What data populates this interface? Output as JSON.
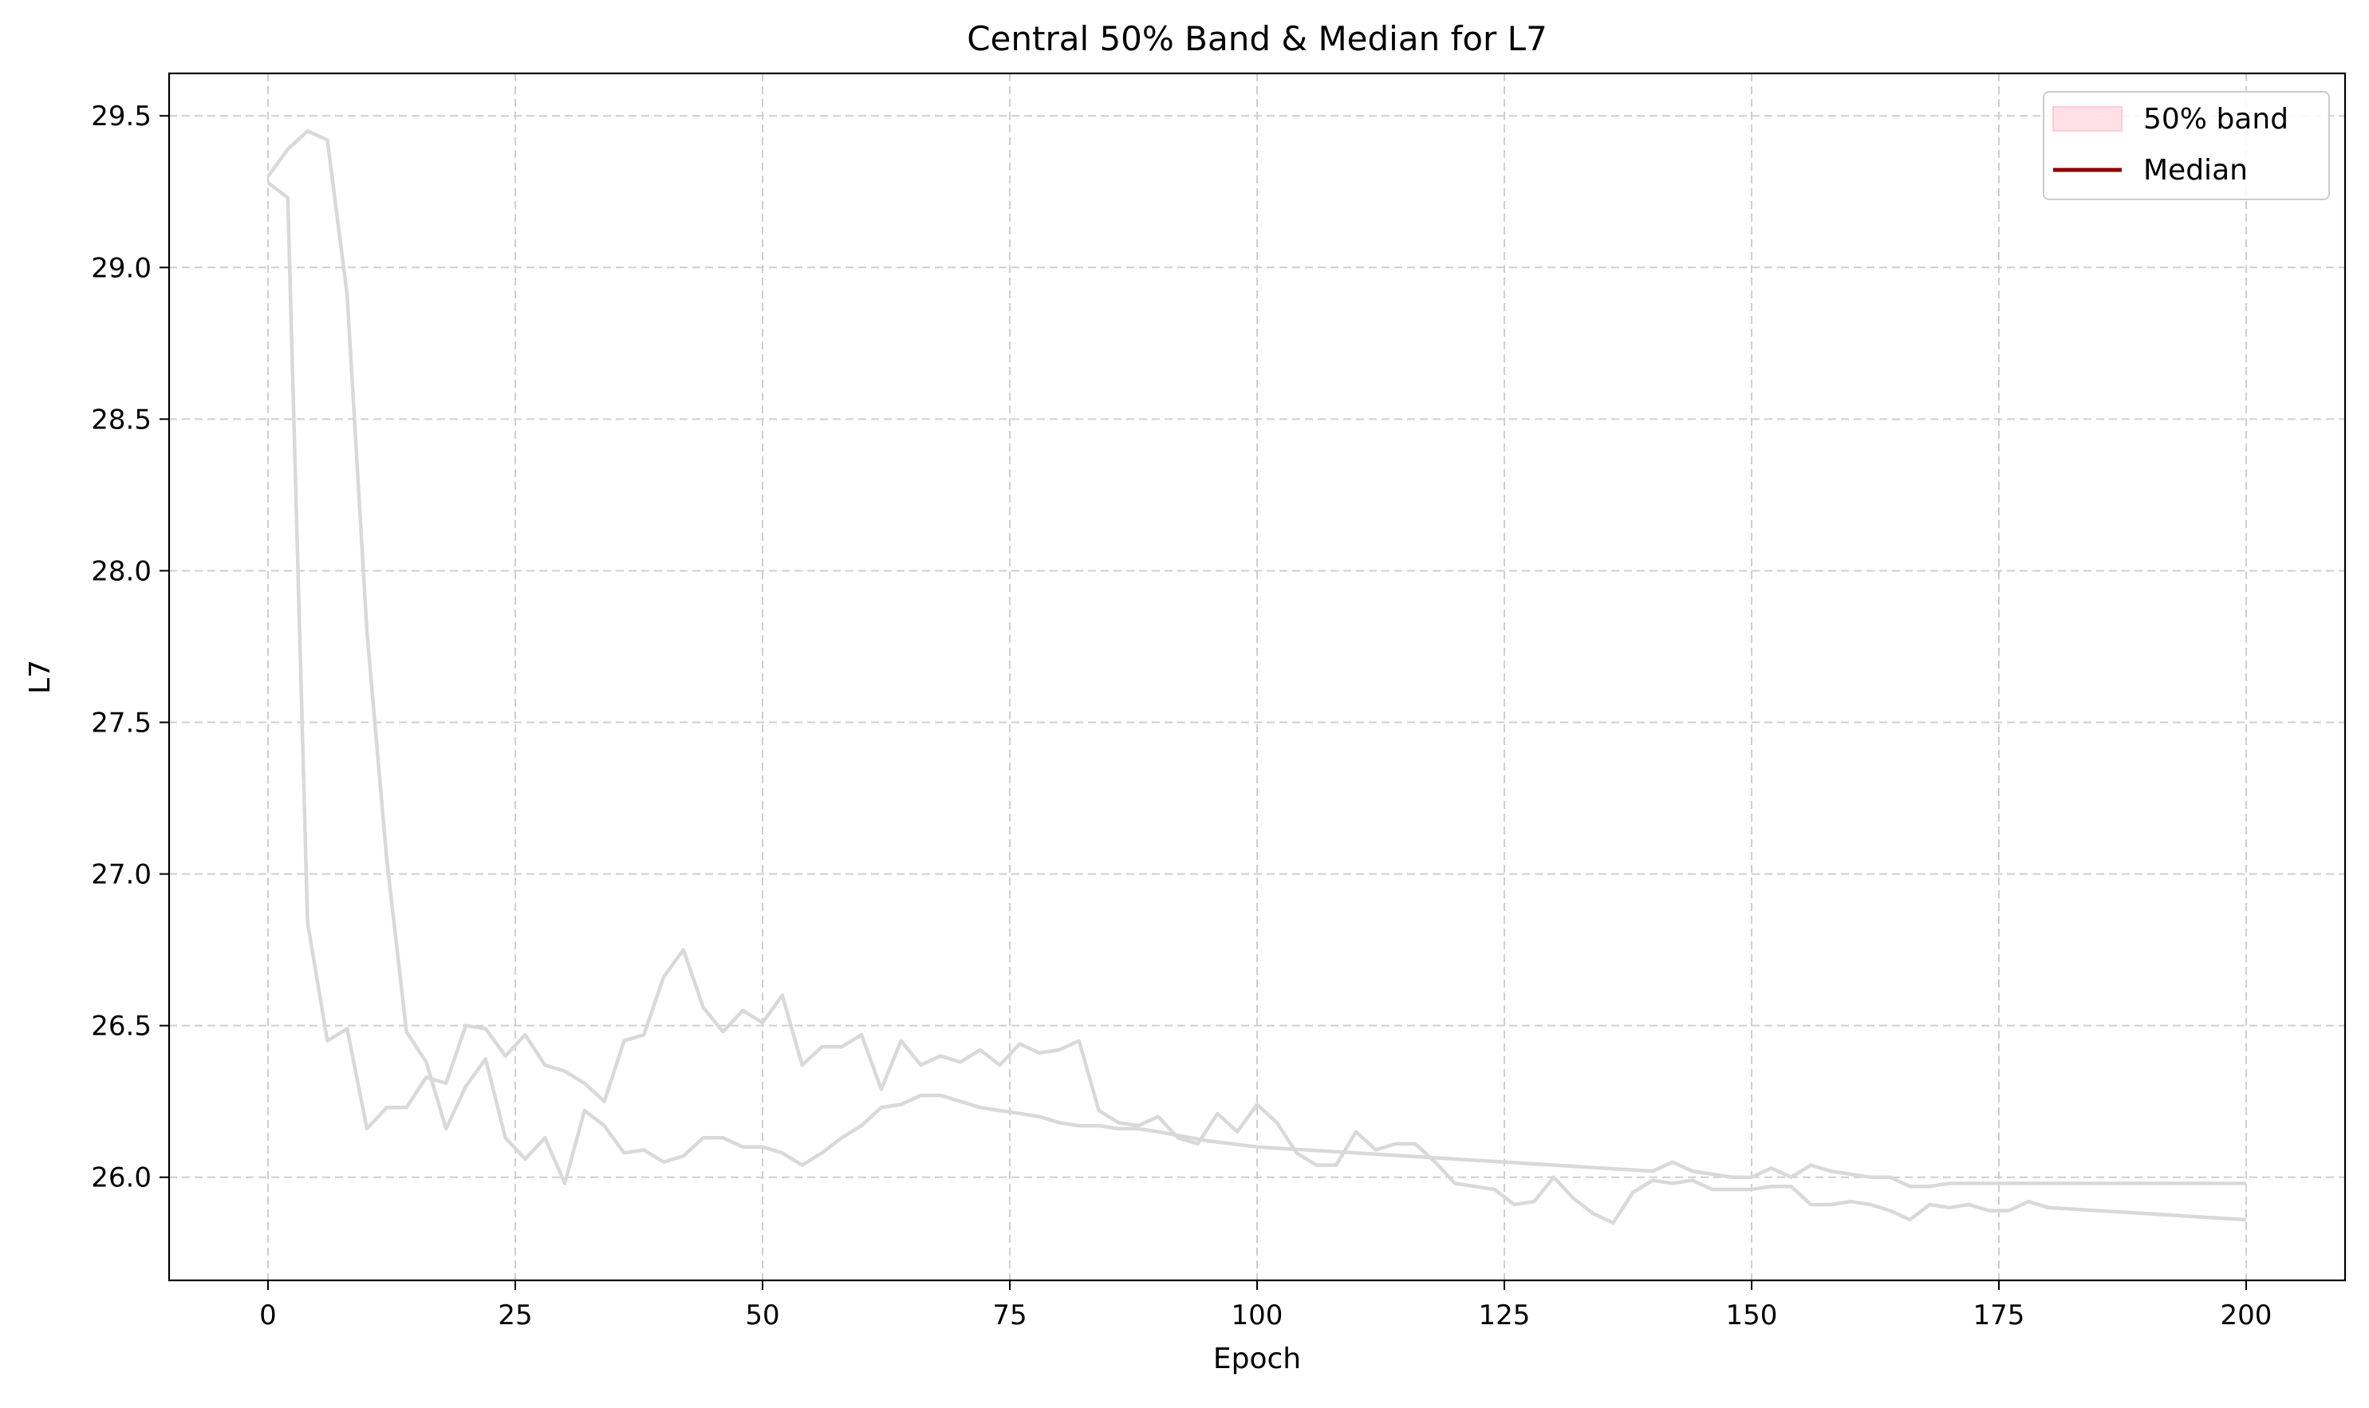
{
  "chart_data": {
    "type": "line",
    "title": "Central 50% Band & Median for L7",
    "xlabel": "Epoch",
    "ylabel": "L7",
    "xlim": [
      -10,
      210
    ],
    "ylim": [
      25.66,
      29.64
    ],
    "xticks": [
      0,
      25,
      50,
      75,
      100,
      125,
      150,
      175,
      200
    ],
    "yticks": [
      26.0,
      26.5,
      27.0,
      27.5,
      28.0,
      28.5,
      29.0,
      29.5
    ],
    "xtick_labels": [
      "0",
      "25",
      "50",
      "75",
      "100",
      "125",
      "150",
      "175",
      "200"
    ],
    "ytick_labels": [
      "26.0",
      "26.5",
      "27.0",
      "27.5",
      "28.0",
      "28.5",
      "29.0",
      "29.5"
    ],
    "grid": true,
    "legend_position": "top-right",
    "legend": [
      {
        "label": "50% band",
        "kind": "band",
        "color": "#ffccd5"
      },
      {
        "label": "Median",
        "kind": "line",
        "color": "#8b0000"
      }
    ],
    "series": [
      {
        "color": "#d9d9d9",
        "x": [
          0,
          2,
          4,
          6,
          8,
          10,
          12,
          14,
          16,
          18,
          20,
          22,
          24,
          26,
          28,
          30,
          32,
          34,
          36,
          38,
          40,
          42,
          44,
          46,
          48,
          50,
          52,
          54,
          56,
          58,
          60,
          62,
          64,
          66,
          68,
          70,
          72,
          74,
          76,
          78,
          80,
          82,
          84,
          86,
          88,
          90,
          92,
          94,
          96,
          98,
          100,
          102,
          104,
          106,
          108,
          110,
          112,
          114,
          116,
          118,
          120,
          122,
          124,
          126,
          128,
          130,
          132,
          134,
          136,
          138,
          140,
          142,
          144,
          146,
          148,
          150,
          152,
          154,
          156,
          158,
          160,
          162,
          164,
          166,
          168,
          170,
          172,
          174,
          176,
          178,
          180,
          185,
          190,
          195,
          200
        ],
        "values": [
          29.28,
          29.23,
          26.84,
          26.45,
          26.49,
          26.16,
          26.23,
          26.23,
          26.33,
          26.31,
          26.5,
          26.49,
          26.4,
          26.47,
          26.37,
          26.35,
          26.31,
          26.25,
          26.45,
          26.47,
          26.66,
          26.75,
          26.56,
          26.48,
          26.55,
          26.51,
          26.6,
          26.37,
          26.43,
          26.43,
          26.47,
          26.29,
          26.45,
          26.37,
          26.4,
          26.38,
          26.42,
          26.37,
          26.44,
          26.41,
          26.42,
          26.45,
          26.22,
          26.18,
          26.17,
          26.2,
          26.13,
          26.11,
          26.21,
          26.15,
          26.24,
          26.18,
          26.08,
          26.04,
          26.04,
          26.15,
          26.09,
          26.11,
          26.11,
          26.05,
          25.98,
          25.97,
          25.96,
          25.91,
          25.92,
          26.0,
          25.93,
          25.88,
          25.85,
          25.95,
          25.99,
          25.98,
          25.99,
          25.96,
          25.96,
          25.96,
          25.97,
          25.97,
          25.91,
          25.91,
          25.92,
          25.91,
          25.89,
          25.86,
          25.91,
          25.9,
          25.91,
          25.89,
          25.89,
          25.92,
          25.9,
          25.89,
          25.88,
          25.87,
          25.86
        ]
      },
      {
        "color": "#d9d9d9",
        "x": [
          0,
          2,
          4,
          6,
          8,
          10,
          12,
          14,
          16,
          18,
          20,
          22,
          24,
          26,
          28,
          30,
          32,
          34,
          36,
          38,
          40,
          42,
          44,
          46,
          48,
          50,
          52,
          54,
          56,
          58,
          60,
          62,
          64,
          66,
          68,
          70,
          72,
          74,
          76,
          78,
          80,
          82,
          84,
          86,
          88,
          90,
          95,
          100,
          110,
          120,
          130,
          140,
          142,
          144,
          146,
          148,
          150,
          152,
          154,
          156,
          158,
          160,
          162,
          164,
          166,
          168,
          170,
          175,
          180,
          190,
          200
        ],
        "values": [
          29.3,
          29.39,
          29.45,
          29.42,
          28.91,
          27.8,
          27.05,
          26.48,
          26.38,
          26.16,
          26.3,
          26.39,
          26.13,
          26.06,
          26.13,
          25.98,
          26.22,
          26.17,
          26.08,
          26.09,
          26.05,
          26.07,
          26.13,
          26.13,
          26.1,
          26.1,
          26.08,
          26.04,
          26.08,
          26.13,
          26.17,
          26.23,
          26.24,
          26.27,
          26.27,
          26.25,
          26.23,
          26.22,
          26.21,
          26.2,
          26.18,
          26.17,
          26.17,
          26.16,
          26.16,
          26.15,
          26.12,
          26.1,
          26.08,
          26.06,
          26.04,
          26.02,
          26.05,
          26.02,
          26.01,
          26.0,
          26.0,
          26.03,
          26.0,
          26.04,
          26.02,
          26.01,
          26.0,
          26.0,
          25.97,
          25.97,
          25.98,
          25.98,
          25.98,
          25.98,
          25.98
        ]
      }
    ]
  }
}
